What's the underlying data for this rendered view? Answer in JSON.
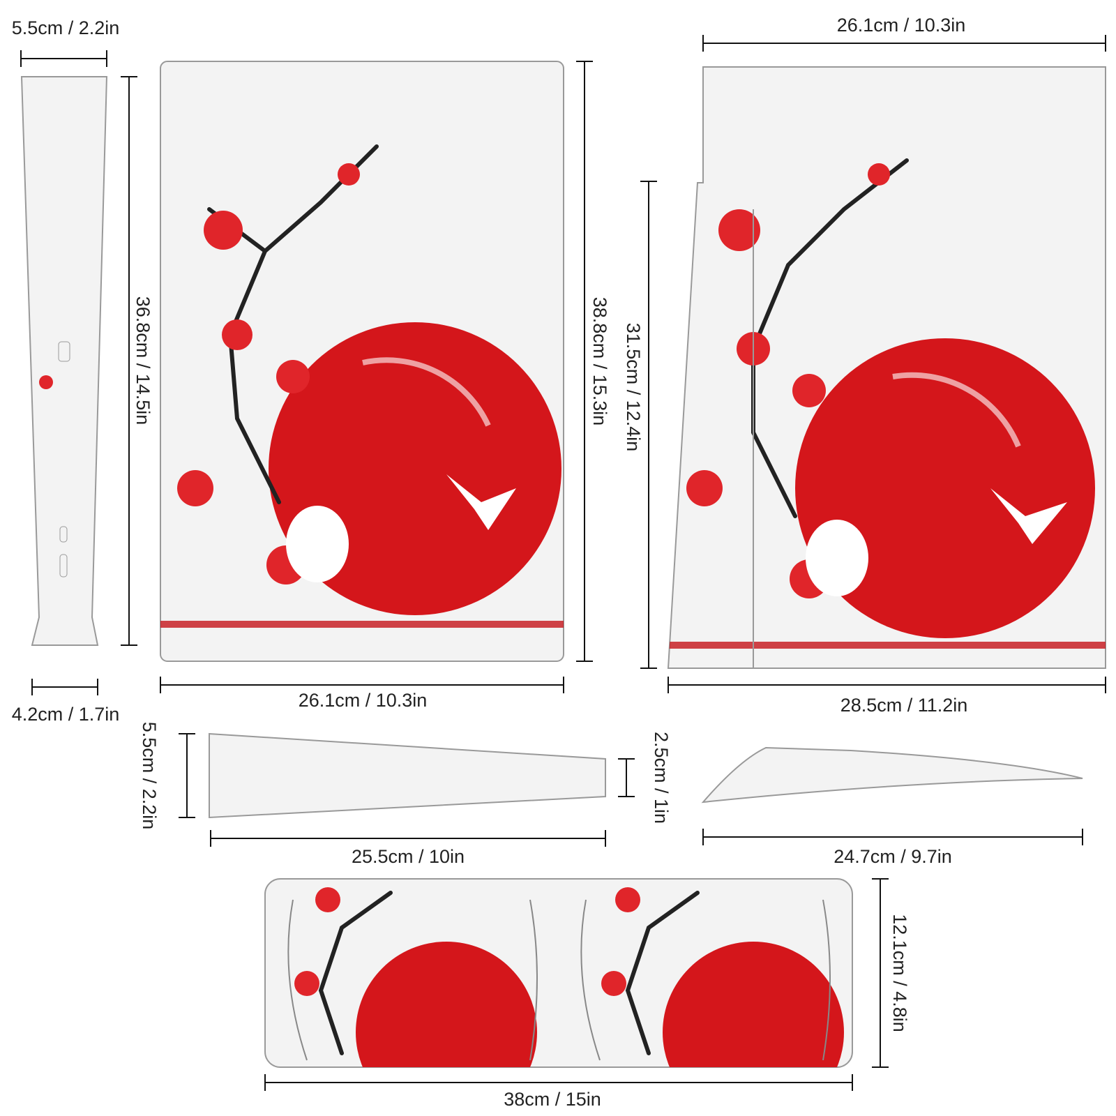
{
  "dimensions": [
    "5.5cm / 2.2in",
    "36.8cm / 14.5in",
    "4.2cm / 1.7in",
    "26.1cm / 10.3in",
    "38.8cm / 15.3in",
    "26.1cm / 10.3in",
    "31.5cm / 12.4in",
    "28.5cm / 11.2in",
    "5.5cm / 2.2in",
    "2.5cm / 1in",
    "25.5cm / 10in",
    "24.7cm / 9.7in",
    "12.1cm / 4.8in",
    "38cm / 15in"
  ]
}
